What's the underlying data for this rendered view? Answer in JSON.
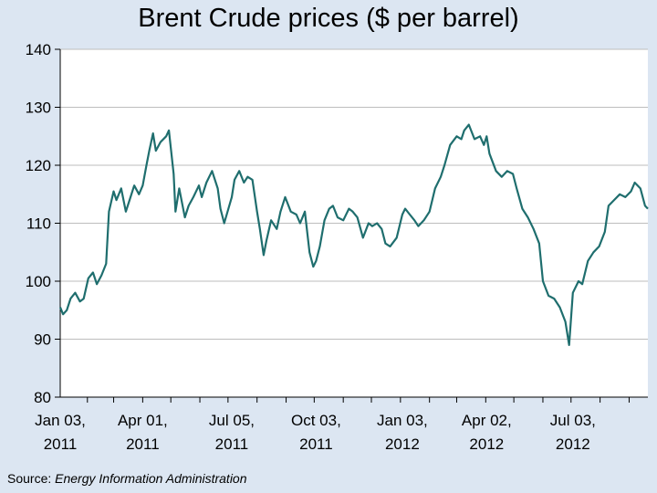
{
  "chart_data": {
    "type": "line",
    "title": "Brent Crude prices ($ per barrel)",
    "xlabel": "",
    "ylabel": "",
    "ylim": [
      80,
      140
    ],
    "yticks": [
      80,
      90,
      100,
      110,
      120,
      130,
      140
    ],
    "xlim": [
      "2011-01-03",
      "2012-09-21"
    ],
    "xtick_labels": [
      {
        "date": "2011-01-03",
        "lines": [
          "Jan 03,",
          "2011"
        ]
      },
      {
        "date": "2011-04-01",
        "lines": [
          "Apr 01,",
          "2011"
        ]
      },
      {
        "date": "2011-07-05",
        "lines": [
          "Jul 05,",
          "2011"
        ]
      },
      {
        "date": "2011-10-03",
        "lines": [
          "Oct 03,",
          "2011"
        ]
      },
      {
        "date": "2012-01-03",
        "lines": [
          "Jan 03,",
          "2012"
        ]
      },
      {
        "date": "2012-04-02",
        "lines": [
          "Apr 02,",
          "2012"
        ]
      },
      {
        "date": "2012-07-03",
        "lines": [
          "Jul 03,",
          "2012"
        ]
      }
    ],
    "grid": true,
    "line_color": "#1f6e6e",
    "series": [
      {
        "x": [
          "2011-01-03",
          "2011-01-06",
          "2011-01-10",
          "2011-01-14",
          "2011-01-19",
          "2011-01-24",
          "2011-01-28",
          "2011-02-02",
          "2011-02-07",
          "2011-02-11",
          "2011-02-16",
          "2011-02-21",
          "2011-02-24",
          "2011-03-01",
          "2011-03-04",
          "2011-03-09",
          "2011-03-14",
          "2011-03-18",
          "2011-03-23",
          "2011-03-28",
          "2011-04-01",
          "2011-04-05",
          "2011-04-08",
          "2011-04-12",
          "2011-04-15",
          "2011-04-20",
          "2011-04-26",
          "2011-04-29",
          "2011-05-04",
          "2011-05-06",
          "2011-05-10",
          "2011-05-16",
          "2011-05-20",
          "2011-05-25",
          "2011-05-31",
          "2011-06-03",
          "2011-06-08",
          "2011-06-14",
          "2011-06-20",
          "2011-06-23",
          "2011-06-27",
          "2011-07-05",
          "2011-07-08",
          "2011-07-13",
          "2011-07-18",
          "2011-07-22",
          "2011-07-27",
          "2011-08-01",
          "2011-08-04",
          "2011-08-08",
          "2011-08-11",
          "2011-08-16",
          "2011-08-22",
          "2011-08-26",
          "2011-08-31",
          "2011-09-06",
          "2011-09-12",
          "2011-09-16",
          "2011-09-21",
          "2011-09-26",
          "2011-09-30",
          "2011-10-03",
          "2011-10-07",
          "2011-10-12",
          "2011-10-17",
          "2011-10-21",
          "2011-10-26",
          "2011-11-01",
          "2011-11-07",
          "2011-11-11",
          "2011-11-16",
          "2011-11-22",
          "2011-11-28",
          "2011-12-02",
          "2011-12-07",
          "2011-12-12",
          "2011-12-16",
          "2011-12-21",
          "2011-12-28",
          "2012-01-03",
          "2012-01-06",
          "2012-01-11",
          "2012-01-16",
          "2012-01-20",
          "2012-01-26",
          "2012-02-01",
          "2012-02-07",
          "2012-02-13",
          "2012-02-17",
          "2012-02-23",
          "2012-03-01",
          "2012-03-06",
          "2012-03-09",
          "2012-03-14",
          "2012-03-20",
          "2012-03-26",
          "2012-03-30",
          "2012-04-02",
          "2012-04-05",
          "2012-04-12",
          "2012-04-18",
          "2012-04-24",
          "2012-04-30",
          "2012-05-04",
          "2012-05-10",
          "2012-05-16",
          "2012-05-22",
          "2012-05-28",
          "2012-06-01",
          "2012-06-07",
          "2012-06-13",
          "2012-06-19",
          "2012-06-25",
          "2012-06-29",
          "2012-07-03",
          "2012-07-09",
          "2012-07-13",
          "2012-07-19",
          "2012-07-25",
          "2012-07-31",
          "2012-08-06",
          "2012-08-10",
          "2012-08-16",
          "2012-08-22",
          "2012-08-28",
          "2012-09-03",
          "2012-09-07",
          "2012-09-13",
          "2012-09-18",
          "2012-09-21"
        ],
        "values": [
          95.5,
          94.3,
          95.0,
          97.0,
          98.0,
          96.5,
          97.0,
          100.5,
          101.5,
          99.5,
          101.0,
          103.0,
          112.0,
          115.5,
          114.0,
          116.0,
          112.0,
          114.0,
          116.5,
          115.0,
          116.5,
          120.0,
          122.5,
          125.5,
          122.5,
          124.0,
          125.0,
          126.0,
          118.5,
          112.0,
          116.0,
          111.0,
          113.0,
          114.5,
          116.5,
          114.5,
          117.0,
          119.0,
          116.0,
          112.5,
          110.0,
          114.5,
          117.5,
          119.0,
          117.0,
          118.0,
          117.5,
          112.0,
          109.0,
          104.5,
          107.0,
          110.5,
          109.0,
          112.0,
          114.5,
          112.0,
          111.5,
          110.0,
          112.0,
          105.0,
          102.5,
          103.5,
          106.0,
          110.5,
          112.5,
          113.0,
          111.0,
          110.5,
          112.5,
          112.0,
          111.0,
          107.5,
          110.0,
          109.5,
          110.0,
          109.0,
          106.5,
          106.0,
          107.5,
          111.5,
          112.5,
          111.5,
          110.5,
          109.5,
          110.5,
          112.0,
          116.0,
          118.0,
          120.0,
          123.5,
          125.0,
          124.5,
          126.0,
          127.0,
          124.5,
          125.0,
          123.5,
          125.0,
          122.0,
          119.0,
          118.0,
          119.0,
          118.5,
          116.0,
          112.5,
          111.0,
          109.0,
          106.5,
          100.0,
          97.5,
          97.0,
          95.5,
          93.0,
          89.0,
          98.0,
          100.0,
          99.5,
          103.5,
          105.0,
          106.0,
          108.5,
          113.0,
          114.0,
          115.0,
          114.5,
          115.5,
          117.0,
          116.0,
          113.0,
          112.5
        ]
      }
    ]
  },
  "source": {
    "label": "Source:",
    "name": "Energy Information Administration"
  }
}
